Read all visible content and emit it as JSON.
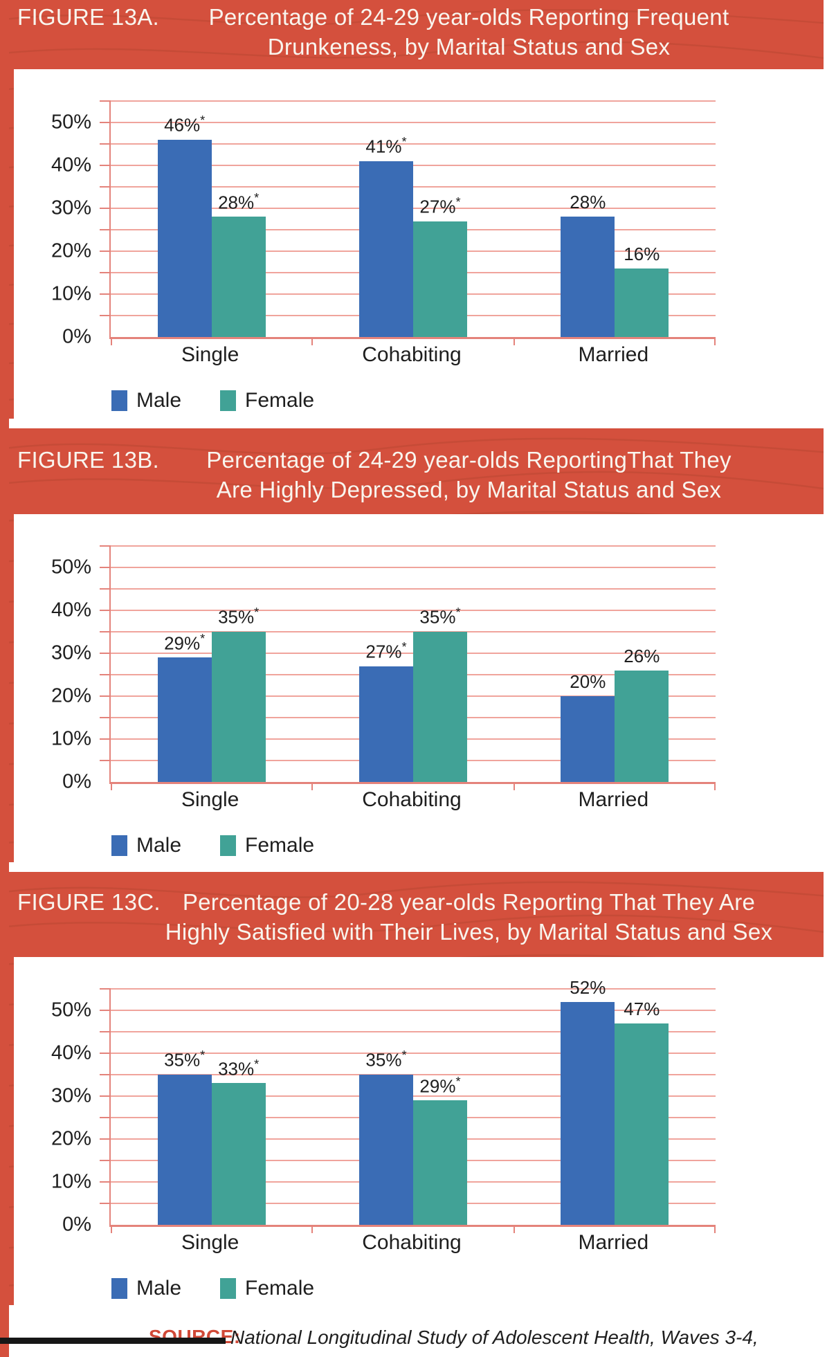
{
  "page": {
    "background_color": "#ffffff",
    "accent_red": "#d4503d",
    "grain_color": "#b64530",
    "header_text_color": "#f9f5ee"
  },
  "colors": {
    "male": "#3a6cb5",
    "female": "#41a296",
    "gridline": "#f0a49c",
    "axis": "#e4837b",
    "label_text": "#1e1e1e",
    "source_red": "#d04937"
  },
  "legend": {
    "male_label": "Male",
    "female_label": "Female"
  },
  "source": {
    "label": "SOURCE:",
    "text": "National Longitudinal Study of Adolescent Health, Waves 3-4,"
  },
  "chart_data": [
    {
      "type": "bar",
      "figure_label": "FIGURE 13A.",
      "title_lines": [
        "Percentage of 24-29 year-olds Reporting Frequent",
        "Drunkeness, by Marital Status and Sex"
      ],
      "categories": [
        "Single",
        "Cohabiting",
        "Married"
      ],
      "series": [
        {
          "name": "Male",
          "color_key": "male",
          "values": [
            46,
            41,
            28
          ],
          "starred": [
            true,
            true,
            false
          ]
        },
        {
          "name": "Female",
          "color_key": "female",
          "values": [
            28,
            27,
            16
          ],
          "starred": [
            true,
            true,
            false
          ]
        }
      ],
      "ytick_labels": [
        "0%",
        "10%",
        "20%",
        "30%",
        "40%",
        "50%"
      ],
      "ylim": [
        0,
        55
      ],
      "grid_step": 5,
      "legend_position": "bottom-left",
      "grid": true
    },
    {
      "type": "bar",
      "figure_label": "FIGURE 13B.",
      "title_lines": [
        "Percentage of 24-29 year-olds ReportingThat They",
        "Are Highly Depressed, by Marital Status and Sex"
      ],
      "categories": [
        "Single",
        "Cohabiting",
        "Married"
      ],
      "series": [
        {
          "name": "Male",
          "color_key": "male",
          "values": [
            29,
            27,
            20
          ],
          "starred": [
            true,
            true,
            false
          ]
        },
        {
          "name": "Female",
          "color_key": "female",
          "values": [
            35,
            35,
            26
          ],
          "starred": [
            true,
            true,
            false
          ]
        }
      ],
      "ytick_labels": [
        "0%",
        "10%",
        "20%",
        "30%",
        "40%",
        "50%"
      ],
      "ylim": [
        0,
        55
      ],
      "grid_step": 5,
      "legend_position": "bottom-left",
      "grid": true
    },
    {
      "type": "bar",
      "figure_label": "FIGURE 13C.",
      "title_lines": [
        "Percentage of 20-28 year-olds Reporting That They Are",
        "Highly Satisfied with Their Lives, by Marital Status and Sex"
      ],
      "categories": [
        "Single",
        "Cohabiting",
        "Married"
      ],
      "series": [
        {
          "name": "Male",
          "color_key": "male",
          "values": [
            35,
            35,
            52
          ],
          "starred": [
            true,
            true,
            false
          ]
        },
        {
          "name": "Female",
          "color_key": "female",
          "values": [
            33,
            29,
            47
          ],
          "starred": [
            true,
            true,
            false
          ]
        }
      ],
      "ytick_labels": [
        "0%",
        "10%",
        "20%",
        "30%",
        "40%",
        "50%"
      ],
      "ylim": [
        0,
        55
      ],
      "grid_step": 5,
      "legend_position": "bottom-left",
      "grid": true
    }
  ]
}
